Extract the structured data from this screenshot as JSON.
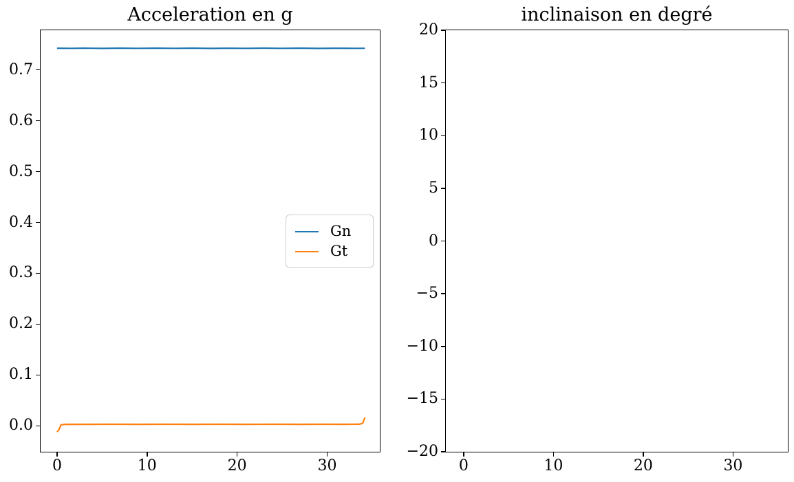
{
  "figure": {
    "background": "#ffffff",
    "text_color": "#000000",
    "axes_edge_color": "#000000"
  },
  "chart_data": [
    {
      "type": "line",
      "title": "Acceleration en g",
      "xlabel": "",
      "ylabel": "",
      "grid": false,
      "xlim": [
        -1.83,
        35.85
      ],
      "ylim": [
        -0.051,
        0.778
      ],
      "xticks": {
        "values": [
          0,
          10,
          20,
          30
        ],
        "labels": [
          "0",
          "10",
          "20",
          "30"
        ]
      },
      "yticks": {
        "values": [
          0.0,
          0.1,
          0.2,
          0.3,
          0.4,
          0.5,
          0.6,
          0.7
        ],
        "labels": [
          "0.0",
          "0.1",
          "0.2",
          "0.3",
          "0.4",
          "0.5",
          "0.6",
          "0.7"
        ]
      },
      "legend": {
        "visible": true,
        "position": "center-right"
      },
      "series": [
        {
          "name": "Gn",
          "color": "#1f77b4",
          "points": [
            [
              0,
              0.7427
            ],
            [
              1.5,
              0.7424
            ],
            [
              3,
              0.7429
            ],
            [
              5,
              0.7423
            ],
            [
              7,
              0.7428
            ],
            [
              9,
              0.7424
            ],
            [
              11,
              0.7429
            ],
            [
              13,
              0.7425
            ],
            [
              15,
              0.7428
            ],
            [
              17,
              0.7423
            ],
            [
              19,
              0.7427
            ],
            [
              21,
              0.7424
            ],
            [
              23,
              0.7429
            ],
            [
              25,
              0.7425
            ],
            [
              27,
              0.7428
            ],
            [
              29,
              0.7423
            ],
            [
              31,
              0.7427
            ],
            [
              33,
              0.7425
            ],
            [
              34.2,
              0.7426
            ]
          ]
        },
        {
          "name": "Gt",
          "color": "#ff7f0e",
          "points": [
            [
              0,
              -0.012
            ],
            [
              0.2,
              -0.008
            ],
            [
              0.45,
              0.002
            ],
            [
              1,
              0.003
            ],
            [
              3,
              0.003
            ],
            [
              6,
              0.0031
            ],
            [
              9,
              0.003
            ],
            [
              12,
              0.0031
            ],
            [
              15,
              0.003
            ],
            [
              18,
              0.0031
            ],
            [
              21,
              0.003
            ],
            [
              24,
              0.0031
            ],
            [
              27,
              0.003
            ],
            [
              30,
              0.0031
            ],
            [
              32,
              0.003
            ],
            [
              33.6,
              0.0032
            ],
            [
              33.95,
              0.005
            ],
            [
              34.1,
              0.012
            ],
            [
              34.2,
              0.0165
            ]
          ]
        }
      ]
    },
    {
      "type": "line",
      "title": "inclinaison en degré",
      "xlabel": "",
      "ylabel": "",
      "grid": false,
      "xlim": [
        -1.98,
        36.1
      ],
      "ylim": [
        -20,
        20
      ],
      "xticks": {
        "values": [
          0,
          10,
          20,
          30
        ],
        "labels": [
          "0",
          "10",
          "20",
          "30"
        ]
      },
      "yticks": {
        "values": [
          -20,
          -15,
          -10,
          -5,
          0,
          5,
          10,
          15,
          20
        ],
        "labels": [
          "−20",
          "−15",
          "−10",
          "−5",
          "0",
          "5",
          "10",
          "15",
          "20"
        ]
      },
      "legend": {
        "visible": false
      },
      "series": []
    }
  ]
}
